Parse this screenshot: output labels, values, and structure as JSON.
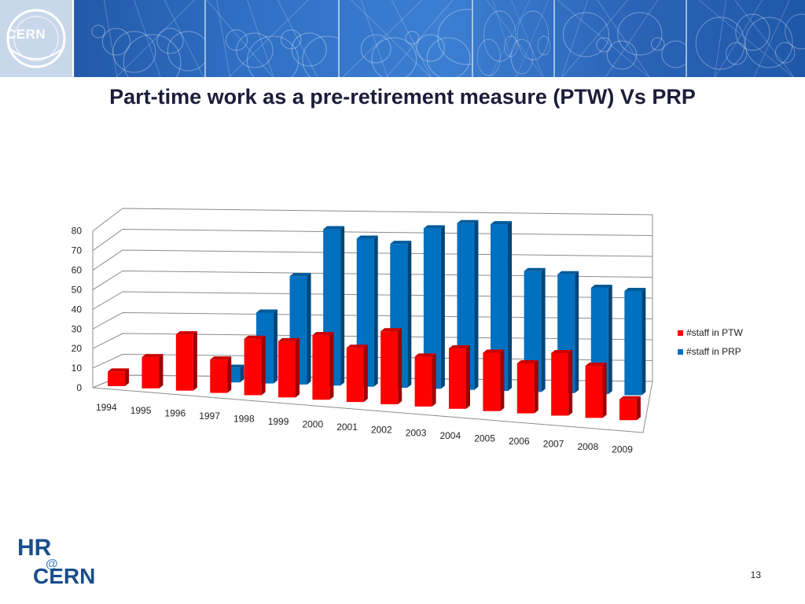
{
  "banner": {
    "logo_text": "CERN",
    "tile_icons": [
      "particle-track-icon",
      "particle-track-icon",
      "particle-track-icon",
      "particle-track-icon",
      "particle-track-icon",
      "particle-track-icon",
      "particle-track-icon",
      "particle-track-icon"
    ]
  },
  "slide": {
    "title": "Part-time work as a pre-retirement measure (PTW) Vs PRP",
    "page_number": "13"
  },
  "footer_logo": {
    "text_top": "HR",
    "text_mid": "@",
    "text_bottom": "CERN",
    "color": "#1a4e8c"
  },
  "chart_data": {
    "type": "bar",
    "title": "",
    "xlabel": "",
    "ylabel": "",
    "ylim": [
      0,
      80
    ],
    "yticks": [
      "0",
      "10",
      "20",
      "30",
      "40",
      "50",
      "60",
      "70",
      "80"
    ],
    "grid": true,
    "legend_position": "right",
    "categories": [
      "1994",
      "1995",
      "1996",
      "1997",
      "1998",
      "1999",
      "2000",
      "2001",
      "2002",
      "2003",
      "2004",
      "2005",
      "2006",
      "2007",
      "2008",
      "2009"
    ],
    "series": [
      {
        "name": "#staff in PTW",
        "color": "#ff0000",
        "values": [
          7,
          15,
          27,
          16,
          27,
          27,
          31,
          26,
          35,
          24,
          29,
          28,
          24,
          30,
          25,
          10
        ]
      },
      {
        "name": "#staff in PRP",
        "color": "#0070c0",
        "values": [
          0,
          0,
          0,
          7,
          34,
          52,
          75,
          71,
          69,
          77,
          80,
          80,
          58,
          57,
          51,
          50
        ]
      }
    ]
  }
}
